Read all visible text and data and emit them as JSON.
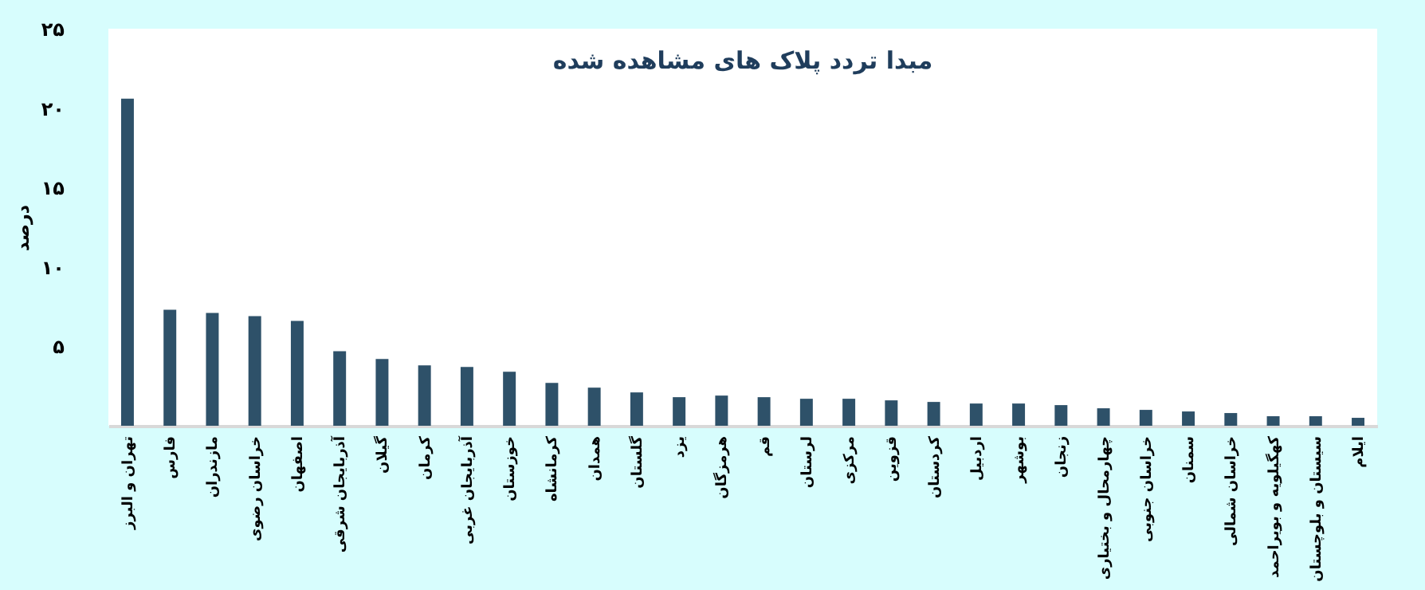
{
  "chart_data": {
    "type": "bar",
    "title": "مبدا تردد پلاک های مشاهده شده",
    "ylabel": "درصد",
    "categories": [
      "تهران و البرز",
      "فارس",
      "مازندران",
      "خراسان رضوی",
      "اصفهان",
      "آذربایجان شرقی",
      "گیلان",
      "کرمان",
      "آذربایجان غربی",
      "خوزستان",
      "کرمانشاه",
      "همدان",
      "گلستان",
      "یزد",
      "هرمزگان",
      "قم",
      "لرستان",
      "مرکزی",
      "قزوین",
      "کردستان",
      "اردبیل",
      "بوشهر",
      "زنجان",
      "چهارمحال و بختیاری",
      "خراسان جنوبی",
      "سمنان",
      "خراسان شمالی",
      "کهگیلویه و بویراحمد",
      "سیستان و بلوچستان",
      "ایلام"
    ],
    "values": [
      20.6,
      7.3,
      7.1,
      6.9,
      6.6,
      4.7,
      4.2,
      3.8,
      3.7,
      3.4,
      2.7,
      2.4,
      2.1,
      1.8,
      1.9,
      1.8,
      1.7,
      1.7,
      1.6,
      1.5,
      1.4,
      1.4,
      1.3,
      1.1,
      1.0,
      0.9,
      0.8,
      0.6,
      0.6,
      0.5
    ],
    "color": "#2e5169",
    "ylim": [
      0,
      25
    ],
    "yticks": [
      {
        "value": 5,
        "label": "۵"
      },
      {
        "value": 10,
        "label": "۱۰"
      },
      {
        "value": 15,
        "label": "۱۵"
      },
      {
        "value": 20,
        "label": "۲۰"
      },
      {
        "value": 25,
        "label": "۲۵"
      }
    ],
    "grid": false
  }
}
